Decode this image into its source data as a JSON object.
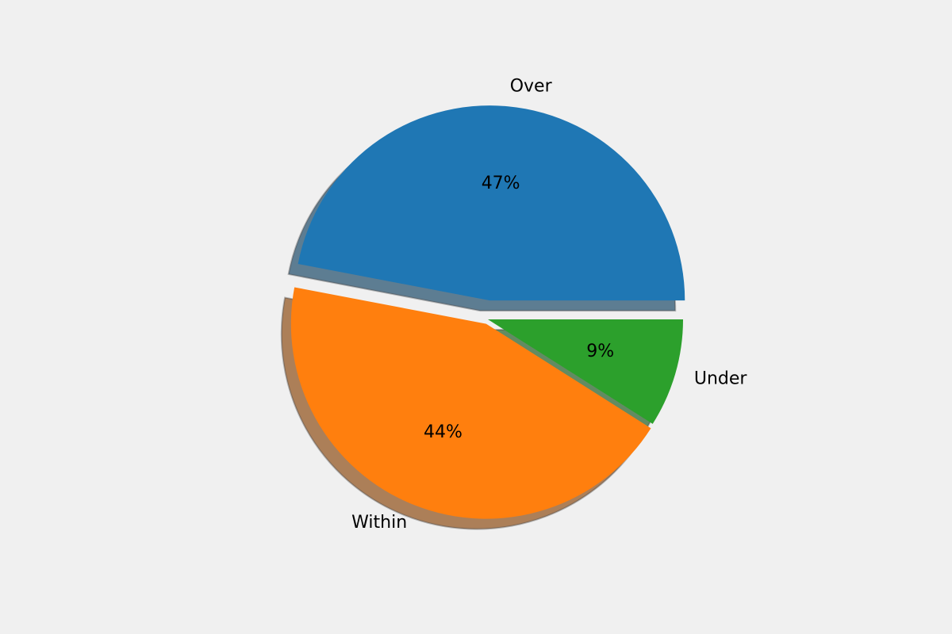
{
  "chart_data": {
    "type": "pie",
    "categories": [
      "Over",
      "Within",
      "Under"
    ],
    "values": [
      47,
      44,
      9
    ],
    "value_labels": [
      "47%",
      "44%",
      "9%"
    ],
    "colors": [
      "#1f77b4",
      "#ff7f0e",
      "#2ca02c"
    ],
    "shadow": true
  }
}
